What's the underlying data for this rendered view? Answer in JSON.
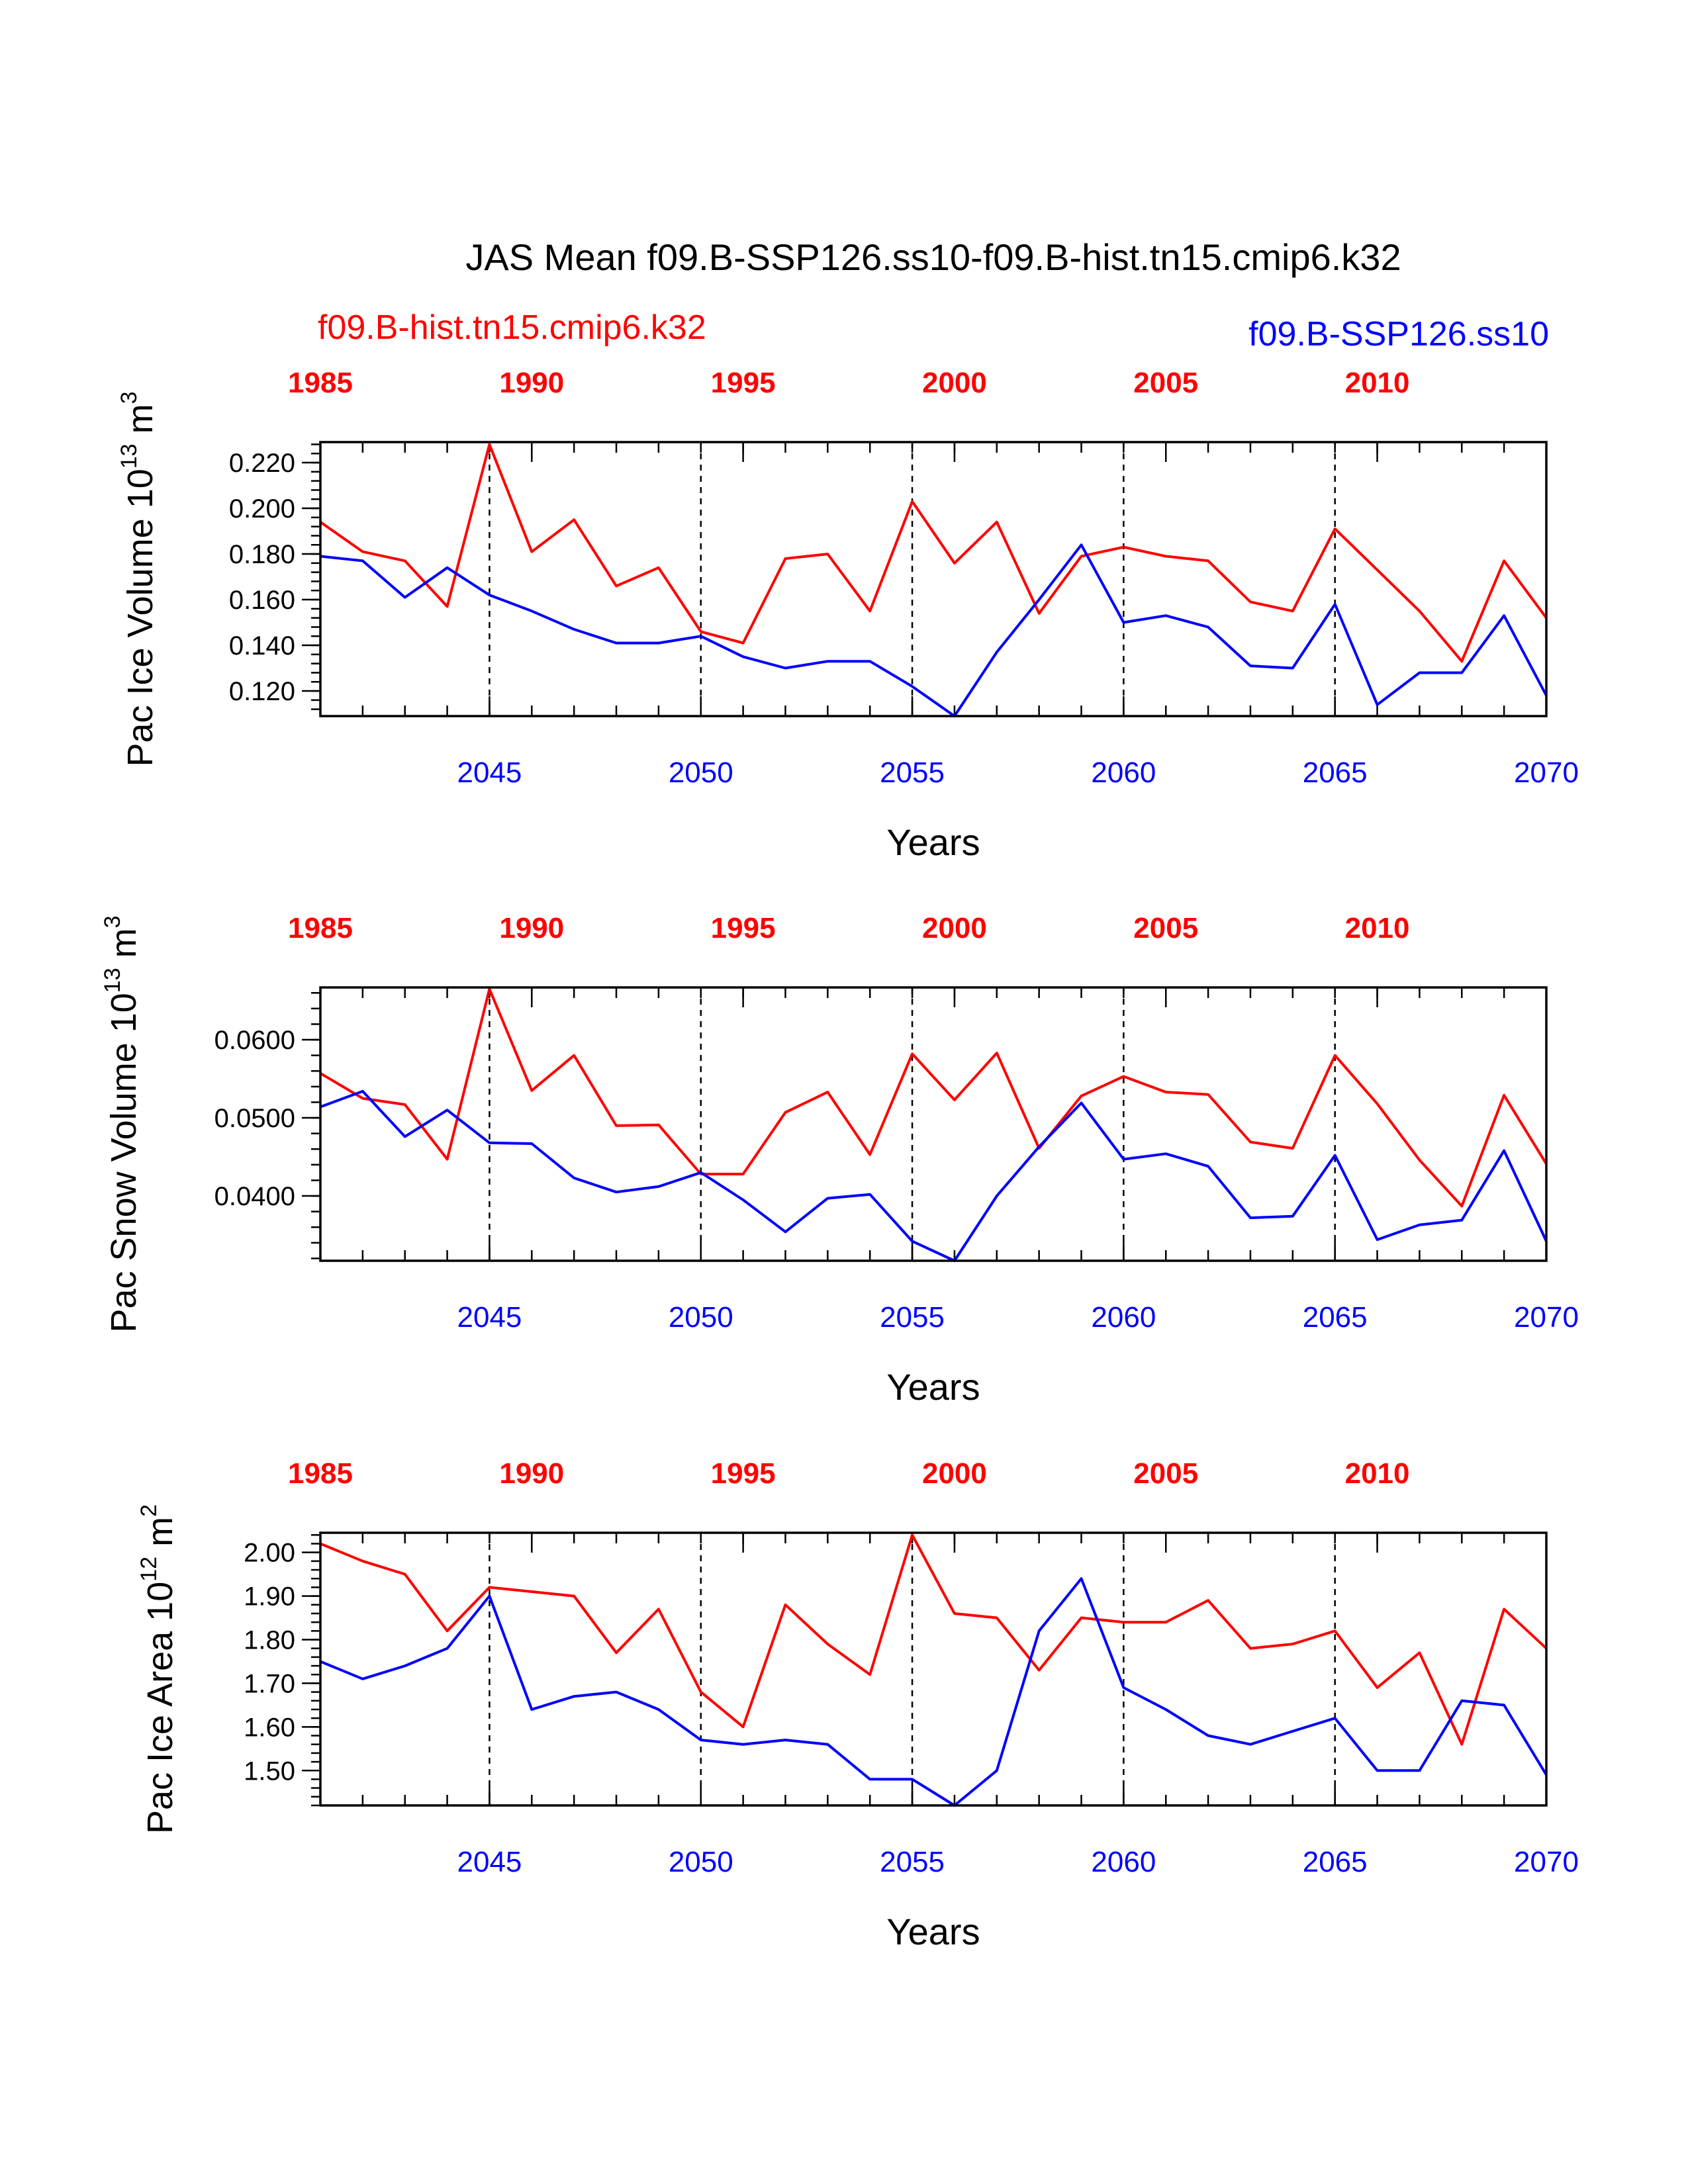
{
  "title": "JAS Mean f09.B-SSP126.ss10-f09.B-hist.tn15.cmip6.k32",
  "legend": {
    "left": {
      "label": "f09.B-hist.tn15.cmip6.k32",
      "color": "#ff0000"
    },
    "right": {
      "label": "f09.B-SSP126.ss10",
      "color": "#0000ff"
    }
  },
  "colors": {
    "hist": "#ff0000",
    "ssp": "#0000ff",
    "axis": "#000000"
  },
  "chart_data": [
    {
      "type": "line",
      "ylabel": {
        "main": "Pac Ice Volume 10",
        "exp": "13",
        "unit": " m",
        "unit_exp": "3"
      },
      "xlabel": "Years",
      "ylim": [
        0.109,
        0.229
      ],
      "yticks": [
        {
          "v": 0.12,
          "label": "0.120"
        },
        {
          "v": 0.14,
          "label": "0.140"
        },
        {
          "v": 0.16,
          "label": "0.160"
        },
        {
          "v": 0.18,
          "label": "0.180"
        },
        {
          "v": 0.2,
          "label": "0.200"
        },
        {
          "v": 0.22,
          "label": "0.220"
        }
      ],
      "x_bottom": {
        "range": [
          2041,
          2070
        ],
        "tick_labels": [
          "2045",
          "2050",
          "2055",
          "2060",
          "2065",
          "2070"
        ],
        "tick_values": [
          2045,
          2050,
          2055,
          2060,
          2065,
          2070
        ]
      },
      "x_top": {
        "range": [
          1985,
          2014
        ],
        "tick_labels": [
          "1985",
          "1990",
          "1995",
          "2000",
          "2005",
          "2010"
        ],
        "tick_values": [
          1985,
          1990,
          1995,
          2000,
          2005,
          2010
        ]
      },
      "series": [
        {
          "name": "f09.B-hist.tn15.cmip6.k32",
          "color": "#ff0000",
          "values": [
            0.194,
            0.181,
            0.177,
            0.157,
            0.228,
            0.181,
            0.195,
            0.166,
            0.174,
            0.146,
            0.141,
            0.178,
            0.18,
            0.155,
            0.203,
            0.176,
            0.194,
            0.154,
            0.179,
            0.183,
            0.179,
            0.177,
            0.159,
            0.155,
            0.191,
            0.173,
            0.155,
            0.133,
            0.177,
            0.152
          ]
        },
        {
          "name": "f09.B-SSP126.ss10",
          "color": "#0000ff",
          "values": [
            0.179,
            0.177,
            0.161,
            0.174,
            0.162,
            0.155,
            0.147,
            0.141,
            0.141,
            0.144,
            0.135,
            0.13,
            0.133,
            0.133,
            0.122,
            0.109,
            0.137,
            0.16,
            0.184,
            0.15,
            0.153,
            0.148,
            0.131,
            0.13,
            0.158,
            0.114,
            0.128,
            0.128,
            0.153,
            0.118
          ]
        }
      ]
    },
    {
      "type": "line",
      "ylabel": {
        "main": "Pac Snow Volume 10",
        "exp": "13",
        "unit": " m",
        "unit_exp": "3"
      },
      "xlabel": "Years",
      "ylim": [
        0.0317,
        0.0667
      ],
      "yticks": [
        {
          "v": 0.04,
          "label": "0.0400"
        },
        {
          "v": 0.05,
          "label": "0.0500"
        },
        {
          "v": 0.06,
          "label": "0.0600"
        }
      ],
      "x_bottom": {
        "range": [
          2041,
          2070
        ],
        "tick_labels": [
          "2045",
          "2050",
          "2055",
          "2060",
          "2065",
          "2070"
        ],
        "tick_values": [
          2045,
          2050,
          2055,
          2060,
          2065,
          2070
        ]
      },
      "x_top": {
        "range": [
          1985,
          2014
        ],
        "tick_labels": [
          "1985",
          "1990",
          "1995",
          "2000",
          "2005",
          "2010"
        ],
        "tick_values": [
          1985,
          1990,
          1995,
          2000,
          2005,
          2010
        ]
      },
      "series": [
        {
          "name": "f09.B-hist.tn15.cmip6.k32",
          "color": "#ff0000",
          "values": [
            0.0557,
            0.0525,
            0.0517,
            0.0447,
            0.0665,
            0.0535,
            0.058,
            0.049,
            0.0491,
            0.0428,
            0.0428,
            0.0507,
            0.0533,
            0.0453,
            0.0582,
            0.0523,
            0.0583,
            0.0461,
            0.0528,
            0.0553,
            0.0533,
            0.053,
            0.0469,
            0.0461,
            0.058,
            0.0518,
            0.0446,
            0.0387,
            0.0529,
            0.0441
          ]
        },
        {
          "name": "f09.B-SSP126.ss10",
          "color": "#0000ff",
          "values": [
            0.0514,
            0.0534,
            0.0476,
            0.051,
            0.0468,
            0.0467,
            0.0423,
            0.0405,
            0.0412,
            0.043,
            0.0395,
            0.0354,
            0.0397,
            0.0402,
            0.0342,
            0.0317,
            0.04,
            0.0463,
            0.0519,
            0.0447,
            0.0454,
            0.0438,
            0.0372,
            0.0374,
            0.0452,
            0.0344,
            0.0363,
            0.0369,
            0.0458,
            0.0342
          ]
        }
      ]
    },
    {
      "type": "line",
      "ylabel": {
        "main": "Pac Ice Area 10",
        "exp": "12",
        "unit": " m",
        "unit_exp": "2"
      },
      "xlabel": "Years",
      "ylim": [
        1.42,
        2.045
      ],
      "yticks": [
        {
          "v": 1.5,
          "label": "1.50"
        },
        {
          "v": 1.6,
          "label": "1.60"
        },
        {
          "v": 1.7,
          "label": "1.70"
        },
        {
          "v": 1.8,
          "label": "1.80"
        },
        {
          "v": 1.9,
          "label": "1.90"
        },
        {
          "v": 2.0,
          "label": "2.00"
        }
      ],
      "x_bottom": {
        "range": [
          2041,
          2070
        ],
        "tick_labels": [
          "2045",
          "2050",
          "2055",
          "2060",
          "2065",
          "2070"
        ],
        "tick_values": [
          2045,
          2050,
          2055,
          2060,
          2065,
          2070
        ]
      },
      "x_top": {
        "range": [
          1985,
          2014
        ],
        "tick_labels": [
          "1985",
          "1990",
          "1995",
          "2000",
          "2005",
          "2010"
        ],
        "tick_values": [
          1985,
          1990,
          1995,
          2000,
          2005,
          2010
        ]
      },
      "series": [
        {
          "name": "f09.B-hist.tn15.cmip6.k32",
          "color": "#ff0000",
          "values": [
            2.02,
            1.98,
            1.95,
            1.82,
            1.92,
            1.91,
            1.9,
            1.77,
            1.87,
            1.68,
            1.6,
            1.88,
            1.79,
            1.72,
            2.04,
            1.86,
            1.85,
            1.73,
            1.85,
            1.84,
            1.84,
            1.89,
            1.78,
            1.79,
            1.82,
            1.69,
            1.77,
            1.56,
            1.87,
            1.78
          ]
        },
        {
          "name": "f09.B-SSP126.ss10",
          "color": "#0000ff",
          "values": [
            1.75,
            1.71,
            1.74,
            1.78,
            1.9,
            1.64,
            1.67,
            1.68,
            1.64,
            1.57,
            1.56,
            1.57,
            1.56,
            1.48,
            1.48,
            1.42,
            1.5,
            1.82,
            1.94,
            1.69,
            1.64,
            1.58,
            1.56,
            1.59,
            1.62,
            1.5,
            1.5,
            1.66,
            1.65,
            1.49
          ]
        }
      ]
    }
  ]
}
